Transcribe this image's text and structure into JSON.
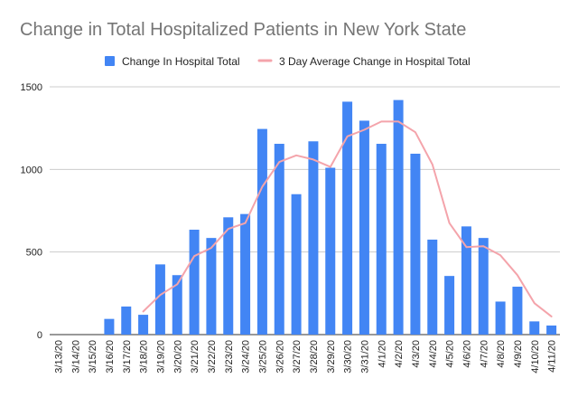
{
  "chart_data": {
    "type": "bar",
    "title": "Change in Total Hospitalized Patients in New York State",
    "xlabel": "",
    "ylabel": "",
    "ylim": [
      0,
      1500
    ],
    "yticks": [
      0,
      500,
      1000,
      1500
    ],
    "grid": true,
    "legend_position": "top",
    "categories": [
      "3/13/20",
      "3/14/20",
      "3/15/20",
      "3/16/20",
      "3/17/20",
      "3/18/20",
      "3/19/20",
      "3/20/20",
      "3/21/20",
      "3/22/20",
      "3/23/20",
      "3/24/20",
      "3/25/20",
      "3/26/20",
      "3/27/20",
      "3/28/20",
      "3/29/20",
      "3/30/20",
      "3/31/20",
      "4/1/20",
      "4/2/20",
      "4/3/20",
      "4/4/20",
      "4/5/20",
      "4/6/20",
      "4/7/20",
      "4/8/20",
      "4/9/20",
      "4/10/20",
      "4/11/20"
    ],
    "series": [
      {
        "name": "Change In Hospital Total",
        "type": "bar",
        "color": "#4285f4",
        "values": [
          0,
          0,
          0,
          95,
          170,
          120,
          425,
          360,
          635,
          585,
          710,
          730,
          1245,
          1155,
          850,
          1170,
          1010,
          1410,
          1295,
          1155,
          1420,
          1095,
          575,
          355,
          655,
          585,
          200,
          290,
          80,
          55
        ]
      },
      {
        "name": "3 Day Average Change in Hospital Total",
        "type": "line",
        "color": "#f4a4ab",
        "values": [
          null,
          null,
          null,
          null,
          null,
          140,
          240,
          305,
          475,
          525,
          640,
          675,
          895,
          1045,
          1085,
          1060,
          1015,
          1200,
          1240,
          1290,
          1290,
          1225,
          1030,
          675,
          530,
          535,
          480,
          360,
          190,
          110
        ]
      }
    ]
  }
}
